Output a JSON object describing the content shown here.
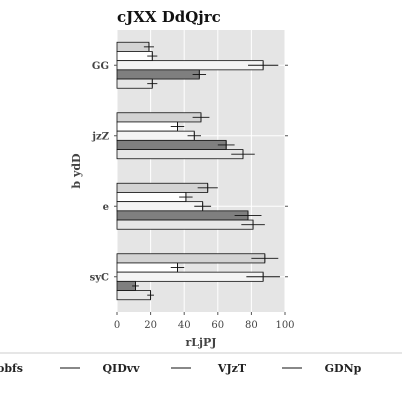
{
  "chart_data": {
    "type": "bar",
    "orientation": "horizontal",
    "title": "cJXX DdQjrc",
    "xlabel": "rLjPJ",
    "ylabel": "b ydD",
    "xlim": [
      0,
      100
    ],
    "xticks": [
      0,
      20,
      40,
      60,
      80,
      100
    ],
    "grid": true,
    "legend_position": "bottom",
    "categories": [
      "GG",
      "jzZ",
      "e",
      "syC"
    ],
    "series": [
      {
        "name": "obfs",
        "color": "#d3d3d3",
        "values": [
          19,
          50,
          54,
          88
        ],
        "errors": [
          3,
          5,
          6,
          8
        ]
      },
      {
        "name": "QIDvv",
        "color": "#ffffff",
        "values": [
          21,
          36,
          41,
          36
        ],
        "errors": [
          3,
          4,
          4,
          4
        ]
      },
      {
        "name": "VJzT",
        "color": "#f4f4f4",
        "values": [
          87,
          46,
          51,
          87
        ],
        "errors": [
          9,
          4,
          5,
          10
        ]
      },
      {
        "name": "GDNp",
        "color": "#7f7f7f",
        "values": [
          49,
          65,
          78,
          11
        ],
        "errors": [
          4,
          5,
          8,
          2
        ]
      },
      {
        "name": "",
        "color": "#e6e6e6",
        "values": [
          21,
          75,
          81,
          20
        ],
        "errors": [
          3,
          7,
          7,
          2
        ]
      }
    ]
  }
}
